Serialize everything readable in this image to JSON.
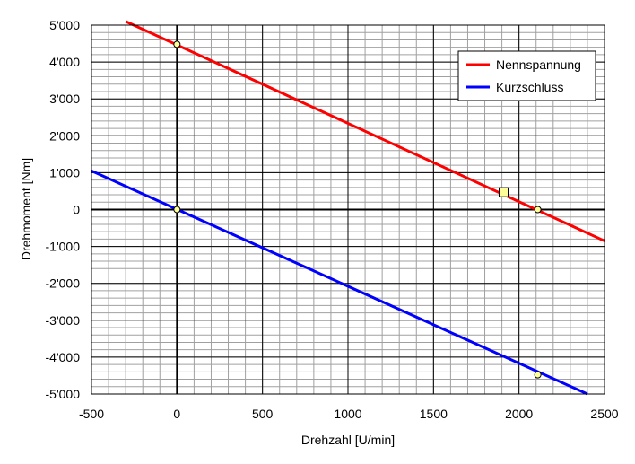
{
  "chart_data": {
    "type": "line",
    "title": "",
    "xlabel": "Drehzahl [U/min]",
    "ylabel": "Drehmoment [Nm]",
    "xlim": [
      -500,
      2500
    ],
    "ylim": [
      -5000,
      5000
    ],
    "x_ticks": [
      -500,
      0,
      500,
      1000,
      1500,
      2000,
      2500
    ],
    "x_tick_labels": [
      "-500",
      "0",
      "500",
      "1000",
      "1500",
      "2000",
      "2500"
    ],
    "y_ticks": [
      5000,
      4000,
      3000,
      2000,
      1000,
      0,
      -1000,
      -2000,
      -3000,
      -4000,
      -5000
    ],
    "y_tick_labels": [
      "5'000",
      "4'000",
      "3'000",
      "2'000",
      "1'000",
      "0",
      "-1'000",
      "-2'000",
      "-3'000",
      "-4'000",
      "-5'000"
    ],
    "grid": true,
    "legend_position": "top-right",
    "series": [
      {
        "name": "Nennspannung",
        "color": "#ff0000",
        "x": [
          -300,
          2500
        ],
        "y": [
          5100,
          -850
        ],
        "markers": [
          {
            "x": 0,
            "y": 4480,
            "shape": "circle",
            "fill": "#ffff99"
          },
          {
            "x": 2110,
            "y": 0,
            "shape": "circle",
            "fill": "#ffff99"
          },
          {
            "x": 1910,
            "y": 470,
            "shape": "square",
            "fill": "#ffff99"
          }
        ]
      },
      {
        "name": "Kurzschluss",
        "color": "#0000ff",
        "x": [
          -500,
          2400
        ],
        "y": [
          1050,
          -5000
        ],
        "markers": [
          {
            "x": 0,
            "y": 0,
            "shape": "circle",
            "fill": "#ffff99"
          },
          {
            "x": 2110,
            "y": -4480,
            "shape": "circle",
            "fill": "#ffff99"
          }
        ]
      }
    ]
  }
}
